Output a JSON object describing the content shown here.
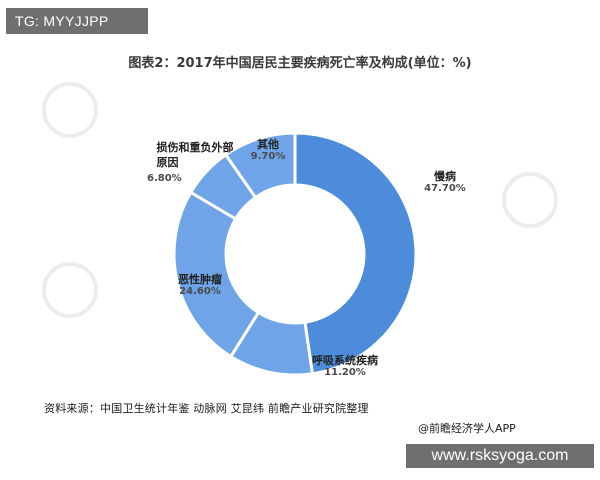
{
  "tag": "TG: MYYJJPP",
  "url": "www.rsksyoga.com",
  "source": "资料来源：中国卫生统计年鉴 动脉网 艾昆纬 前瞻产业研究院整理",
  "brand": "@前瞻经济学人APP",
  "colors": {
    "slice_main": "#4c8cdb",
    "slice_light": "#6fa5e8",
    "separator": "#ffffff"
  },
  "chart_data": {
    "type": "pie",
    "variant": "donut",
    "title": "图表2：2017年中国居民主要疾病死亡率及构成(单位：%)",
    "categories": [
      "慢病",
      "呼吸系统疾病",
      "恶性肿瘤",
      "损伤和重负外部原因",
      "其他"
    ],
    "values": [
      47.7,
      11.2,
      24.6,
      6.8,
      9.7
    ],
    "value_labels": [
      "47.70%",
      "11.20%",
      "24.60%",
      "6.80%",
      "9.70%"
    ],
    "legend": "none"
  }
}
